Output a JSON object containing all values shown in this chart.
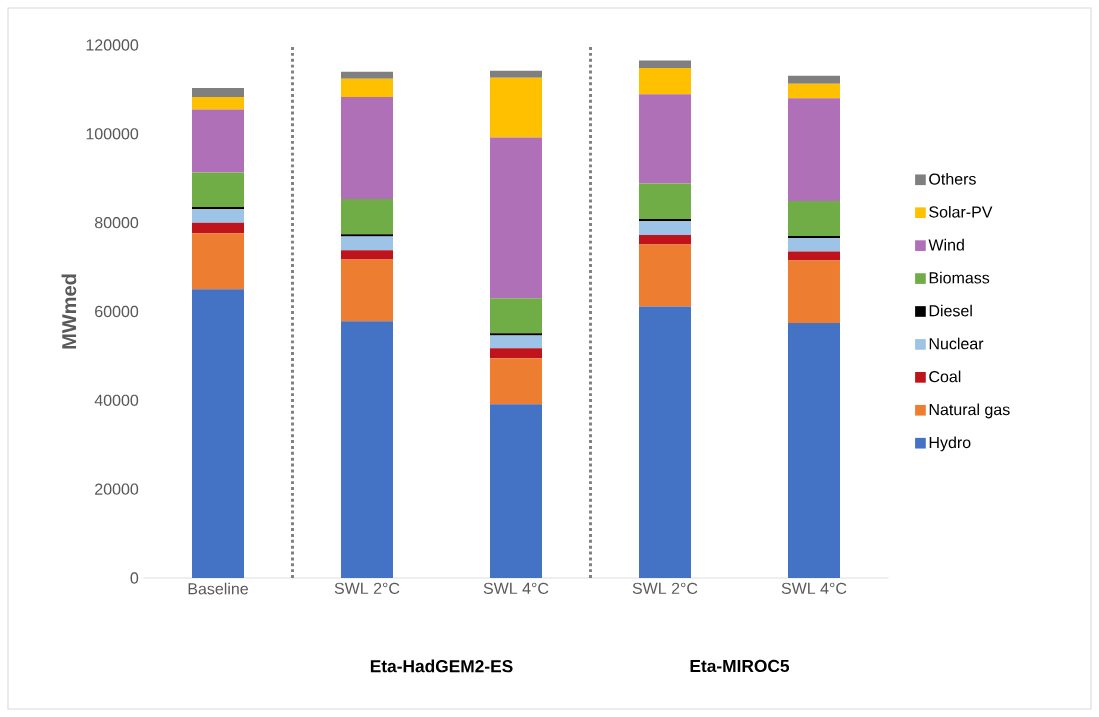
{
  "chart_data": {
    "type": "bar",
    "stacked": true,
    "categories": [
      "Baseline",
      "SWL 2°C",
      "SWL 4°C",
      "SWL 2°C",
      "SWL 4°C"
    ],
    "ylabel": "MWmed",
    "ylim": [
      0,
      120000
    ],
    "yticks": [
      0,
      20000,
      40000,
      60000,
      80000,
      100000,
      120000
    ],
    "legend": "right",
    "series": [
      {
        "name": "Hydro",
        "color": "#4472c4",
        "values": [
          65000,
          57800,
          39100,
          61100,
          57400
        ]
      },
      {
        "name": "Natural gas",
        "color": "#ed7d31",
        "values": [
          12600,
          13900,
          10400,
          14000,
          14100
        ]
      },
      {
        "name": "Coal",
        "color": "#c0141c",
        "values": [
          2400,
          2100,
          2200,
          2100,
          2000
        ]
      },
      {
        "name": "Nuclear",
        "color": "#9dc3e6",
        "values": [
          3000,
          3100,
          2900,
          3100,
          3000
        ]
      },
      {
        "name": "Diesel",
        "color": "#000000",
        "values": [
          500,
          500,
          500,
          500,
          500
        ]
      },
      {
        "name": "Biomass",
        "color": "#70ad47",
        "values": [
          7800,
          7900,
          7900,
          8000,
          7900
        ]
      },
      {
        "name": "Wind",
        "color": "#b070b8",
        "values": [
          14200,
          23000,
          36200,
          20100,
          23100
        ]
      },
      {
        "name": "Solar-PV",
        "color": "#ffc000",
        "values": [
          2800,
          4100,
          13400,
          5900,
          3300
        ]
      },
      {
        "name": "Others",
        "color": "#7f7f7f",
        "values": [
          2000,
          1600,
          1600,
          1700,
          1800
        ]
      }
    ],
    "annotations": [
      "Eta-HadGEM2-ES",
      "Eta-MIROC5"
    ]
  }
}
